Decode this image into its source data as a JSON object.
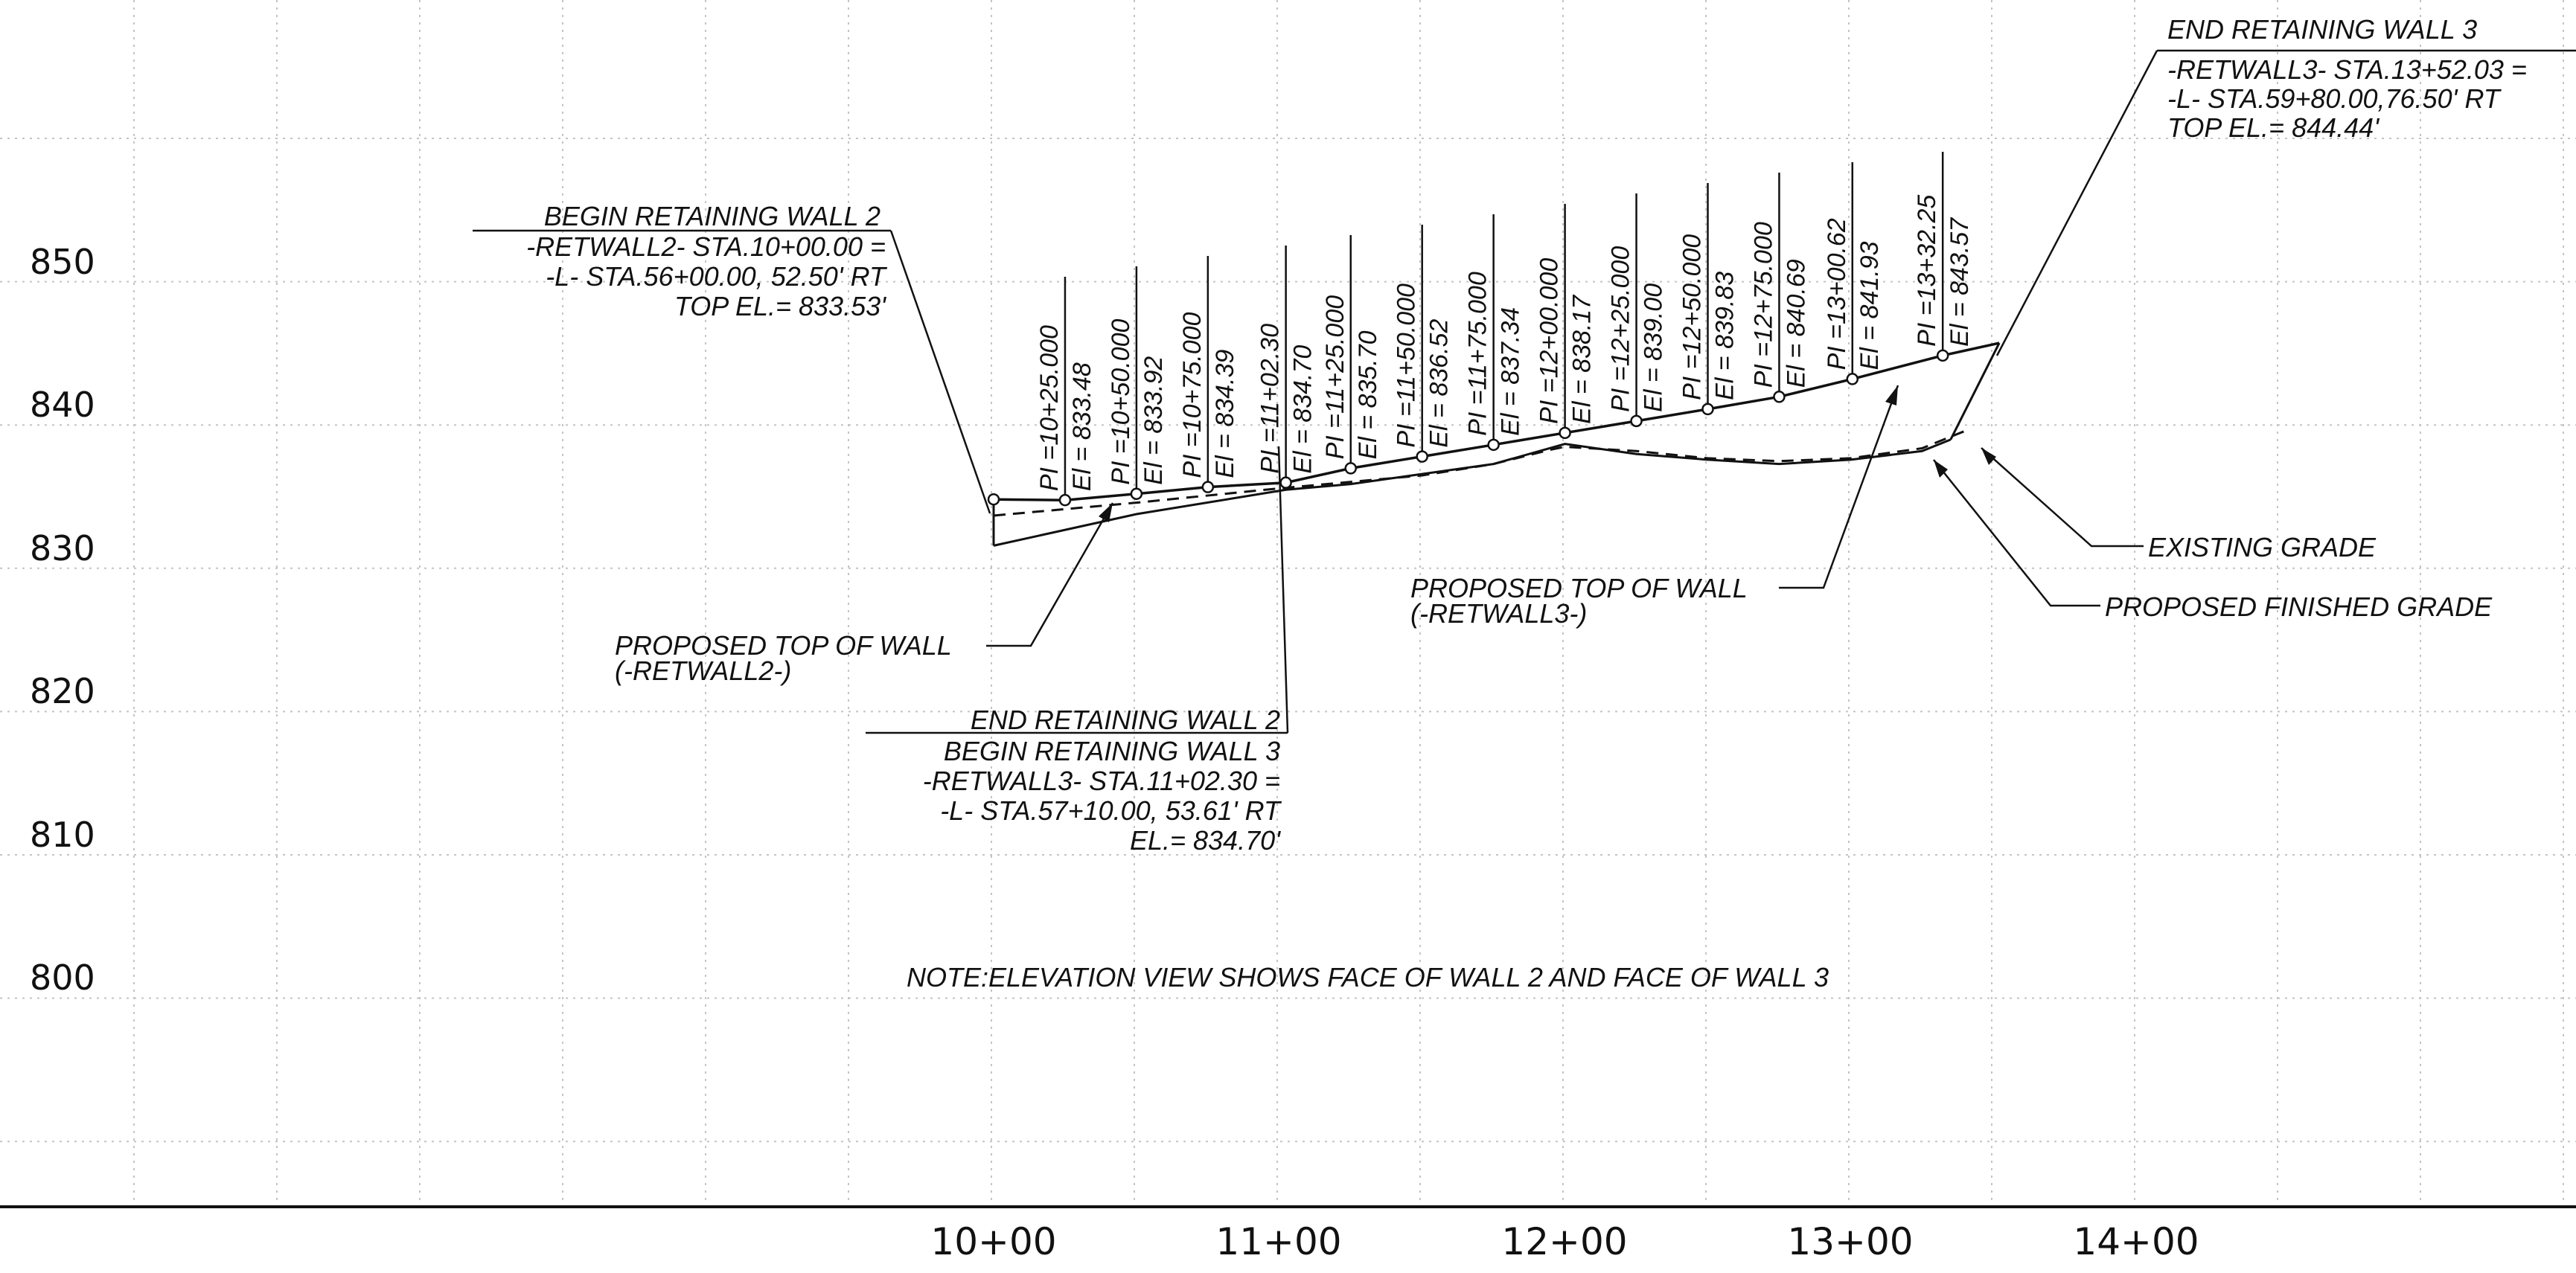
{
  "chart_data": {
    "type": "line",
    "x_axis": {
      "tick_labels": [
        "10+00",
        "11+00",
        "12+00",
        "13+00",
        "14+00"
      ]
    },
    "y_axis": {
      "tick_labels": [
        "850",
        "840",
        "830",
        "820",
        "810",
        "800"
      ]
    },
    "grid": true,
    "series": [
      {
        "station": [
          1000,
          1025,
          1050,
          1075,
          1102.3,
          1125,
          1150,
          1175,
          1200,
          1225,
          1250,
          1275,
          1300.62,
          1332.25,
          1352.03
        ],
        "elevation": [
          833.53,
          833.48,
          833.92,
          834.39,
          834.7,
          835.7,
          836.52,
          837.34,
          838.17,
          839.0,
          839.83,
          840.69,
          841.93,
          843.57,
          844.44
        ]
      },
      {
        "station": [
          1000,
          1050,
          1102.3,
          1125,
          1150,
          1175,
          1200,
          1225,
          1250,
          1275,
          1300,
          1325,
          1335
        ],
        "elevation": [
          830.3,
          832.5,
          834.2,
          834.6,
          835.3,
          836.0,
          837.4,
          836.7,
          836.3,
          836.0,
          836.3,
          836.9,
          837.7
        ]
      },
      {
        "station": [
          1000,
          1050,
          1100,
          1150,
          1175,
          1195,
          1200,
          1225,
          1250,
          1275,
          1300,
          1325,
          1340
        ],
        "elevation": [
          832.4,
          833.3,
          834.3,
          835.2,
          836.0,
          837.0,
          837.2,
          836.9,
          836.4,
          836.2,
          836.4,
          837.1,
          838.3
        ]
      }
    ]
  },
  "pi_labels": [
    {
      "pi": "PI =10+25.000",
      "el": "El = 833.48"
    },
    {
      "pi": "PI =10+50.000",
      "el": "El = 833.92"
    },
    {
      "pi": "PI =10+75.000",
      "el": "El = 834.39"
    },
    {
      "pi": "PI =11+02.30",
      "el": "El = 834.70"
    },
    {
      "pi": "PI =11+25.000",
      "el": "El = 835.70"
    },
    {
      "pi": "PI =11+50.000",
      "el": "El = 836.52"
    },
    {
      "pi": "PI =11+75.000",
      "el": "El = 837.34"
    },
    {
      "pi": "PI =12+00.000",
      "el": "El = 838.17"
    },
    {
      "pi": "PI =12+25.000",
      "el": "El = 839.00"
    },
    {
      "pi": "PI =12+50.000",
      "el": "El = 839.83"
    },
    {
      "pi": "PI =12+75.000",
      "el": "El = 840.69"
    },
    {
      "pi": "PI =13+00.62",
      "el": "El = 841.93"
    },
    {
      "pi": "PI =13+32.25",
      "el": "El = 843.57"
    }
  ],
  "annotations": {
    "begin_wall2": {
      "title": "BEGIN RETAINING WALL 2",
      "line1": "-RETWALL2- STA.10+00.00 =",
      "line2": "-L- STA.56+00.00, 52.50' RT",
      "line3": "TOP EL.= 833.53'"
    },
    "end_wall3": {
      "title": "END RETAINING WALL 3",
      "line1": "-RETWALL3- STA.13+52.03 =",
      "line2": "-L- STA.59+80.00,76.50' RT",
      "line3": "TOP EL.= 844.44'"
    },
    "end_wall2": {
      "title1": "END RETAINING WALL 2",
      "title2": "BEGIN RETAINING WALL 3",
      "line1": "-RETWALL3- STA.11+02.30 =",
      "line2": "-L- STA.57+10.00, 53.61' RT",
      "line3": "EL.= 834.70'"
    },
    "top_wall2": {
      "line1": "PROPOSED TOP OF WALL",
      "line2": "(-RETWALL2-)"
    },
    "top_wall3": {
      "line1": "PROPOSED TOP OF WALL",
      "line2": "(-RETWALL3-)"
    },
    "existing_grade": "EXISTING GRADE",
    "finished_grade": "PROPOSED FINISHED GRADE",
    "note": "NOTE:ELEVATION VIEW SHOWS FACE OF WALL 2 AND FACE OF WALL 3"
  }
}
